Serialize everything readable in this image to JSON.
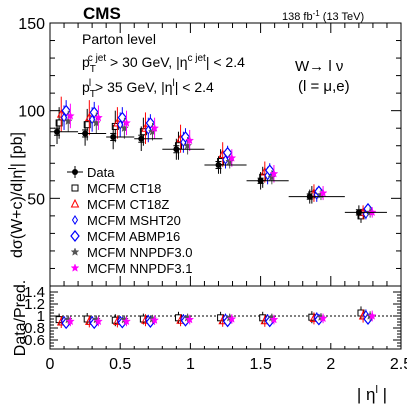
{
  "header": {
    "experiment": "CMS",
    "lumi": "138 fb",
    "lumi_sup": "-1",
    "energy": " (13 TeV)"
  },
  "annotations": {
    "parton_level": "Parton level",
    "cut1_p": "p",
    "cut1_sub": "T",
    "cut1_sup": "c jet",
    "cut1_rest": " > 30 GeV, |η",
    "cut1_sup2": "c jet",
    "cut1_end": "| < 2.4",
    "cut2_p": "p",
    "cut2_sub": "T",
    "cut2_sup": "l",
    "cut2_rest": " > 35 GeV, |η",
    "cut2_sup2": "l",
    "cut2_end": "| < 2.4",
    "process": "W→ l ν",
    "process_sub": "(l = μ,e)"
  },
  "axes": {
    "ylabel_main": "dσ(W+c)/d|η",
    "ylabel_main_sup": "l",
    "ylabel_main_end": "| [pb]",
    "ylabel_ratio": "Data/Pred.",
    "xlabel": "| η",
    "xlabel_sup": "l",
    "xlabel_end": " |",
    "main_yticks": [
      "50",
      "100",
      "150"
    ],
    "ratio_yticks": [
      "0.6",
      "0.8",
      "1",
      "1.2",
      "1.4"
    ],
    "xticks": [
      "0",
      "0.5",
      "1",
      "1.5",
      "2",
      "2.5"
    ]
  },
  "legend": [
    {
      "label": "Data",
      "marker": "data",
      "color": "#000000"
    },
    {
      "label": "MCFM CT18",
      "marker": "open-square",
      "color": "#000000"
    },
    {
      "label": "MCFM CT18Z",
      "marker": "open-triangle",
      "color": "#ff0000"
    },
    {
      "label": "MCFM MSHT20",
      "marker": "open-diamond",
      "color": "#0000ff"
    },
    {
      "label": "MCFM ABMP16",
      "marker": "open-diamond-big",
      "color": "#0000ff"
    },
    {
      "label": "MCFM NNPDF3.0",
      "marker": "star",
      "color": "#555555"
    },
    {
      "label": "MCFM NNPDF3.1",
      "marker": "star",
      "color": "#ff00ff"
    }
  ],
  "chart_data": {
    "type": "scatter",
    "bins": [
      [
        0.0,
        0.2
      ],
      [
        0.2,
        0.4
      ],
      [
        0.4,
        0.6
      ],
      [
        0.6,
        0.8
      ],
      [
        0.8,
        1.1
      ],
      [
        1.1,
        1.4
      ],
      [
        1.4,
        1.7
      ],
      [
        1.7,
        2.1
      ],
      [
        2.1,
        2.4
      ]
    ],
    "xlim": [
      0,
      2.5
    ],
    "ylim": [
      0,
      150
    ],
    "ratio_ylim": [
      0.45,
      1.5
    ],
    "data": {
      "values": [
        88,
        87,
        85,
        84,
        78,
        69,
        60,
        51,
        42
      ],
      "stat_err": [
        2,
        2,
        2,
        2,
        2,
        2,
        1.5,
        1.5,
        1.5
      ],
      "total_err": [
        7,
        7,
        7,
        7,
        6,
        5,
        5,
        4,
        4
      ]
    },
    "series": [
      {
        "name": "MCFM CT18",
        "values": [
          93,
          92,
          91,
          88,
          80,
          71,
          62,
          52,
          40
        ],
        "err": [
          9,
          9,
          9,
          8,
          8,
          7,
          6,
          5,
          4
        ]
      },
      {
        "name": "MCFM CT18Z",
        "values": [
          98,
          96,
          93,
          90,
          84,
          75,
          65,
          53,
          42
        ],
        "err": [
          10,
          10,
          9,
          9,
          8,
          7,
          6,
          5,
          4
        ]
      },
      {
        "name": "MCFM MSHT20",
        "values": [
          96,
          95,
          92,
          89,
          82,
          72,
          63,
          52,
          41
        ],
        "err": [
          7,
          7,
          7,
          7,
          6,
          5,
          5,
          4,
          3
        ]
      },
      {
        "name": "MCFM ABMP16",
        "values": [
          100,
          99,
          96,
          93,
          85,
          76,
          66,
          54,
          44
        ],
        "err": [
          6,
          6,
          6,
          5,
          5,
          4,
          4,
          3,
          3
        ]
      },
      {
        "name": "MCFM NNPDF3.0",
        "values": [
          94,
          93,
          90,
          88,
          80,
          71,
          62,
          52,
          42
        ],
        "err": [
          6,
          6,
          6,
          5,
          5,
          4,
          4,
          3,
          3
        ]
      },
      {
        "name": "MCFM NNPDF3.1",
        "values": [
          97,
          96,
          93,
          90,
          83,
          73,
          64,
          53,
          42
        ],
        "err": [
          7,
          7,
          7,
          6,
          6,
          5,
          5,
          4,
          3
        ]
      }
    ],
    "ratio": {
      "reference_line": 1.0,
      "series": [
        {
          "name": "MCFM CT18",
          "values": [
            0.94,
            0.95,
            0.93,
            0.95,
            0.97,
            0.97,
            0.97,
            0.98,
            1.05
          ],
          "err": [
            0.1,
            0.1,
            0.1,
            0.09,
            0.1,
            0.1,
            0.1,
            0.1,
            0.11
          ]
        },
        {
          "name": "MCFM CT18Z",
          "values": [
            0.9,
            0.91,
            0.91,
            0.93,
            0.93,
            0.92,
            0.92,
            0.96,
            1.0
          ],
          "err": [
            0.1,
            0.1,
            0.1,
            0.1,
            0.1,
            0.1,
            0.1,
            0.1,
            0.11
          ]
        },
        {
          "name": "MCFM MSHT20",
          "values": [
            0.92,
            0.92,
            0.92,
            0.94,
            0.95,
            0.96,
            0.95,
            0.98,
            1.02
          ],
          "err": [
            0.08,
            0.08,
            0.08,
            0.08,
            0.08,
            0.08,
            0.08,
            0.08,
            0.09
          ]
        },
        {
          "name": "MCFM ABMP16",
          "values": [
            0.88,
            0.88,
            0.89,
            0.9,
            0.92,
            0.91,
            0.91,
            0.94,
            0.95
          ],
          "err": [
            0.07,
            0.07,
            0.07,
            0.07,
            0.07,
            0.07,
            0.07,
            0.07,
            0.08
          ]
        },
        {
          "name": "MCFM NNPDF3.0",
          "values": [
            0.94,
            0.94,
            0.94,
            0.95,
            0.97,
            0.97,
            0.97,
            0.98,
            1.0
          ],
          "err": [
            0.07,
            0.07,
            0.07,
            0.07,
            0.07,
            0.07,
            0.07,
            0.07,
            0.08
          ]
        },
        {
          "name": "MCFM NNPDF3.1",
          "values": [
            0.91,
            0.91,
            0.91,
            0.93,
            0.94,
            0.95,
            0.94,
            0.96,
            1.0
          ],
          "err": [
            0.08,
            0.08,
            0.08,
            0.08,
            0.08,
            0.08,
            0.08,
            0.08,
            0.09
          ]
        }
      ]
    }
  }
}
